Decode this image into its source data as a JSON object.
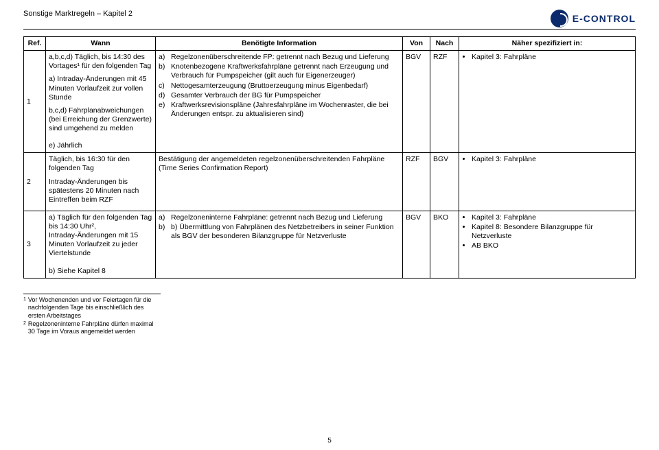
{
  "header": {
    "title": "Sonstige Marktregeln – Kapitel 2",
    "logo_text": "E-CONTROL"
  },
  "table": {
    "columns": [
      "Ref.",
      "Wann",
      "Benötigte Information",
      "Von",
      "Nach",
      "Näher spezifiziert in:"
    ],
    "rows": [
      {
        "ref": "1",
        "wann_blocks": [
          "a,b,c,d) Täglich, bis 14:30 des Vortages¹ für den folgenden Tag",
          "a) Intraday-Änderungen mit 45 Minuten Vorlaufzeit zur vollen Stunde",
          "b,c,d) Fahrplanabweichungen (bei Erreichung der Grenzwerte) sind umgehend zu melden",
          "e) Jährlich"
        ],
        "info_items": [
          {
            "l": "a)",
            "t": "Regelzonenüberschreitende FP: getrennt nach Bezug und Lieferung"
          },
          {
            "l": "b)",
            "t": "Knotenbezogene Kraftwerksfahrpläne getrennt nach Erzeugung und Verbrauch für Pumpspeicher (gilt auch für Eigenerzeuger)"
          },
          {
            "l": "c)",
            "t": "Nettogesamterzeugung (Bruttoerzeugung minus Eigenbedarf)"
          },
          {
            "l": "d)",
            "t": "Gesamter Verbrauch der BG für Pumpspeicher"
          },
          {
            "l": "e)",
            "t": "Kraftwerksrevisionspläne (Jahresfahrpläne im Wochenraster, die bei Änderungen entspr. zu aktualisieren sind)"
          }
        ],
        "von": "BGV",
        "nach": "RZF",
        "spez": [
          "Kapitel 3: Fahrpläne"
        ]
      },
      {
        "ref": "2",
        "wann_blocks": [
          "Täglich, bis 16:30 für den folgenden Tag",
          "Intraday-Änderungen bis spätestens 20 Minuten nach Eintreffen beim RZF"
        ],
        "info_text": "Bestätigung der angemeldeten regelzonenüberschreitenden Fahrpläne (Time Series Confirmation Report)",
        "von": "RZF",
        "nach": "BGV",
        "spez": [
          "Kapitel 3: Fahrpläne"
        ]
      },
      {
        "ref": "3",
        "wann_blocks": [
          "a) Täglich für den folgenden Tag bis 14:30 Uhr²,",
          "Intraday-Änderungen mit 15 Minuten Vorlaufzeit zu jeder Viertelstunde",
          "b) Siehe Kapitel 8"
        ],
        "info_items": [
          {
            "l": "a)",
            "t": "Regelzoneninterne Fahrpläne: getrennt nach Bezug und Lieferung"
          },
          {
            "l": "b)",
            "t": "b) Übermittlung von Fahrplänen des Netzbetreibers in seiner Funktion als BGV der besonderen Bilanzgruppe für Netzverluste"
          }
        ],
        "von": "BGV",
        "nach": "BKO",
        "spez": [
          "Kapitel 3: Fahrpläne",
          "Kapitel 8: Besondere Bilanzgruppe für Netzverluste",
          "AB BKO"
        ]
      }
    ]
  },
  "footnotes": [
    {
      "n": "1",
      "t": "Vor Wochenenden und vor Feiertagen für die nachfolgenden Tage bis einschließlich des ersten Arbeitstages"
    },
    {
      "n": "2",
      "t": "Regelzoneninterne Fahrpläne dürfen maximal 30 Tage im Voraus angemeldet werden"
    }
  ],
  "page_number": "5"
}
